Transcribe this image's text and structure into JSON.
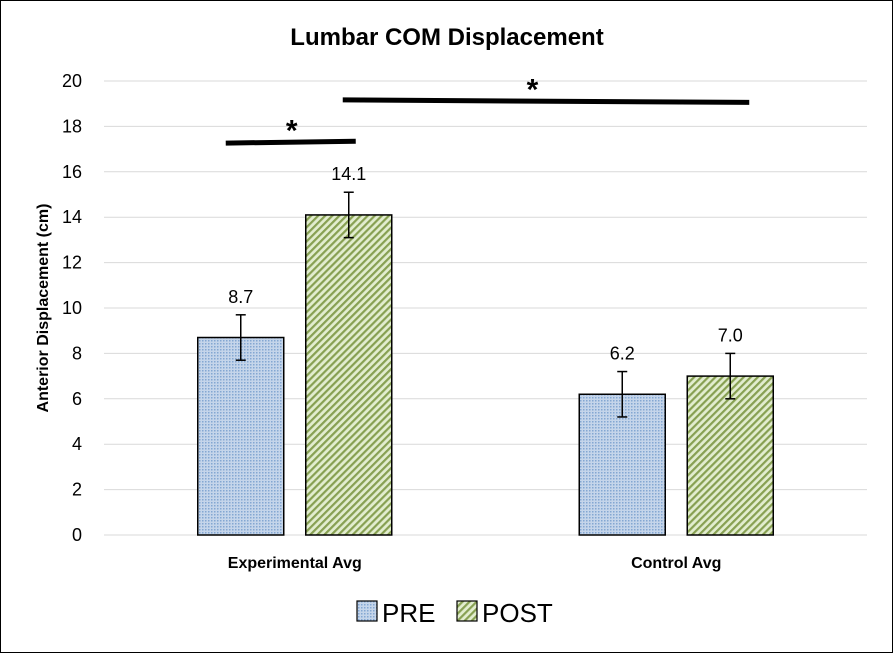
{
  "chart_data": {
    "type": "bar",
    "title": "Lumbar COM Displacement",
    "xlabel": "",
    "ylabel": "Anterior Displacement (cm)",
    "ylim": [
      0,
      20
    ],
    "yticks": [
      0,
      2,
      4,
      6,
      8,
      10,
      12,
      14,
      16,
      18,
      20
    ],
    "ytick_labels": [
      "0",
      "2",
      "4",
      "6",
      "8",
      "10",
      "12",
      "14",
      "16",
      "18",
      "20"
    ],
    "grid": true,
    "legend_position": "bottom",
    "categories": [
      "Experimental Avg",
      "Control Avg"
    ],
    "series": [
      {
        "name": "PRE",
        "values": [
          8.7,
          6.2
        ],
        "labels": [
          "8.7",
          "6.2"
        ],
        "error": [
          1.0,
          1.0
        ],
        "color": "#b8cce4",
        "pattern_color": "#4f81bd"
      },
      {
        "name": "POST",
        "values": [
          14.1,
          7.0
        ],
        "labels": [
          "14.1",
          "7.0"
        ],
        "error": [
          1.0,
          1.0
        ],
        "color": "#d7e4bd",
        "pattern_color": "#77933c"
      }
    ],
    "annotations": [
      {
        "text": "*",
        "y": 17.3,
        "spans": "Experimental PRE vs Experimental POST"
      },
      {
        "text": "*",
        "y": 19.1,
        "spans": "Experimental POST vs Control POST"
      }
    ]
  }
}
